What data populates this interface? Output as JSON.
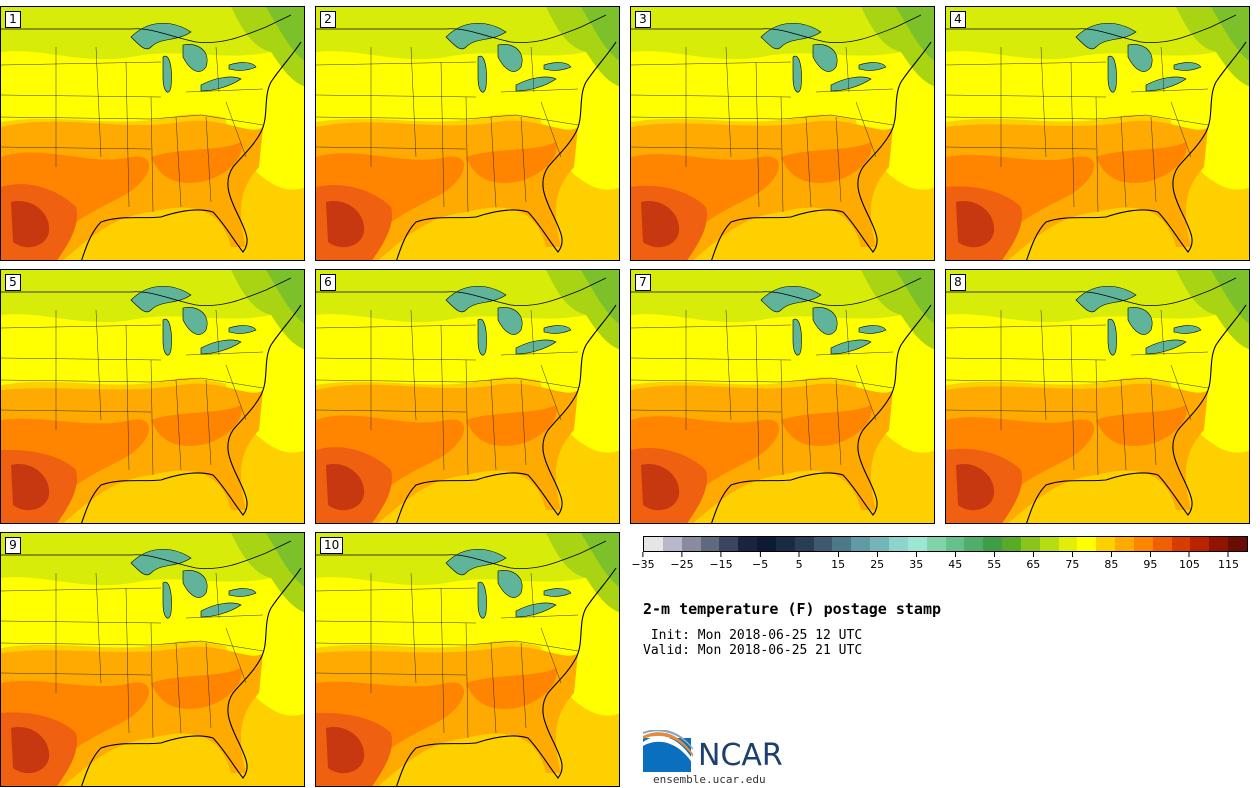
{
  "product": {
    "title": "2-m temperature (F) postage stamp",
    "init": " Init: Mon 2018-06-25 12 UTC",
    "valid": "Valid: Mon 2018-06-25 21 UTC"
  },
  "panels": [
    {
      "label": "1"
    },
    {
      "label": "2"
    },
    {
      "label": "3"
    },
    {
      "label": "4"
    },
    {
      "label": "5"
    },
    {
      "label": "6"
    },
    {
      "label": "7"
    },
    {
      "label": "8"
    },
    {
      "label": "9"
    },
    {
      "label": "10"
    }
  ],
  "colorbar": {
    "unit": "F",
    "min": -35,
    "max": 120,
    "step": 5,
    "tick_labels": [
      "-35",
      "-25",
      "-15",
      "-5",
      "5",
      "15",
      "25",
      "35",
      "45",
      "55",
      "65",
      "75",
      "85",
      "95",
      "105",
      "115"
    ],
    "colors": [
      "#e6e6e6",
      "#b8b8c8",
      "#8a8aa0",
      "#5f6a80",
      "#3a4560",
      "#1a2440",
      "#0d1a33",
      "#1a2a45",
      "#2a3d55",
      "#3d5a70",
      "#4d7a8a",
      "#5f9aa5",
      "#73b5b8",
      "#8fd4cc",
      "#9de6d6",
      "#7fd4a8",
      "#66c08a",
      "#4fae6a",
      "#3f9e45",
      "#5aaa2a",
      "#8ac41a",
      "#b8dc14",
      "#e0ee0a",
      "#ffff00",
      "#ffd000",
      "#ffaa00",
      "#ff8400",
      "#f06000",
      "#d83c00",
      "#b82400",
      "#901400",
      "#6a0c05"
    ]
  },
  "map_colors": {
    "cold_north": "#7cc02a",
    "green": "#a8d414",
    "yellowgreen": "#d8ec0a",
    "yellow": "#ffff00",
    "gold": "#ffd000",
    "orange": "#ffaa00",
    "darkorange": "#ff8400",
    "redorange": "#ef6010",
    "red": "#c83810",
    "lakes": "#5fb49a"
  },
  "logo": {
    "text": "NCAR",
    "url": "ensemble.ucar.edu",
    "icon": "ncar-swoosh-icon"
  }
}
